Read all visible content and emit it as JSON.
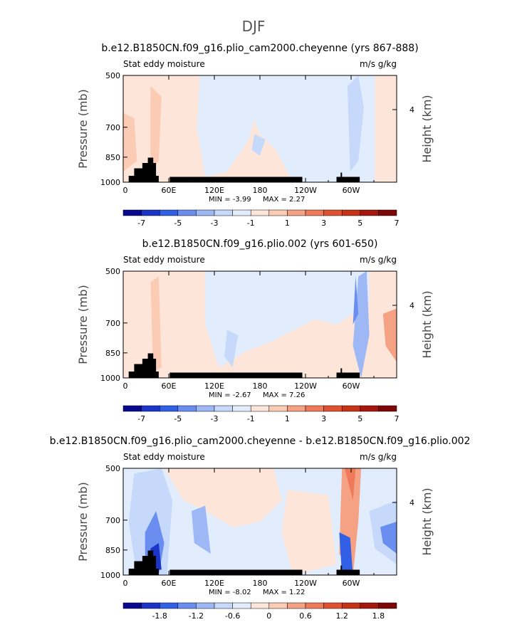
{
  "figure_title": "DJF",
  "chart_data": [
    {
      "type": "heatmap",
      "title": "b.e12.B1850CN.f09_g16.plio_cam2000.cheyenne (yrs 867-888)",
      "field_label": "Stat eddy moisture",
      "units_label": "m/s g/kg",
      "ylabel": "Pressure (mb)",
      "ylabel_right": "Height (km)",
      "right_ticks": [
        "4"
      ],
      "y_ticks": [
        "500",
        "700",
        "850",
        "1000"
      ],
      "x_ticks": [
        "0",
        "60E",
        "120E",
        "180",
        "120W",
        "60W"
      ],
      "min_text": "MIN =   -3.99",
      "max_text": "MAX =    2.27",
      "colorbar_labels": [
        "-7",
        "-5",
        "-3",
        "-1",
        "1",
        "3",
        "5",
        "7"
      ],
      "colorbar_colors": [
        "#08088f",
        "#1a35c8",
        "#3160e6",
        "#6a8ef0",
        "#9db8f5",
        "#c6d9fb",
        "#e1edfd",
        "#fde6d9",
        "#fbcbb3",
        "#f5a183",
        "#ee7a5a",
        "#e0522f",
        "#c63317",
        "#a5160d",
        "#7d0706"
      ]
    },
    {
      "type": "heatmap",
      "title": "b.e12.B1850CN.f09_g16.plio.002 (yrs 601-650)",
      "field_label": "Stat eddy moisture",
      "units_label": "m/s g/kg",
      "ylabel": "Pressure (mb)",
      "ylabel_right": "Height (km)",
      "right_ticks": [
        "4"
      ],
      "y_ticks": [
        "500",
        "700",
        "850",
        "1000"
      ],
      "x_ticks": [
        "0",
        "60E",
        "120E",
        "180",
        "120W",
        "60W"
      ],
      "min_text": "MIN =   -2.67",
      "max_text": "MAX =    7.26",
      "colorbar_labels": [
        "-7",
        "-5",
        "-3",
        "-1",
        "1",
        "3",
        "5",
        "7"
      ],
      "colorbar_colors": [
        "#08088f",
        "#1a35c8",
        "#3160e6",
        "#6a8ef0",
        "#9db8f5",
        "#c6d9fb",
        "#e1edfd",
        "#fde6d9",
        "#fbcbb3",
        "#f5a183",
        "#ee7a5a",
        "#e0522f",
        "#c63317",
        "#a5160d",
        "#7d0706"
      ]
    },
    {
      "type": "heatmap",
      "title": "b.e12.B1850CN.f09_g16.plio_cam2000.cheyenne - b.e12.B1850CN.f09_g16.plio.002",
      "field_label": "Stat eddy moisture",
      "units_label": "m/s g/kg",
      "ylabel": "Pressure (mb)",
      "ylabel_right": "Height (km)",
      "right_ticks": [
        "4"
      ],
      "y_ticks": [
        "500",
        "700",
        "850",
        "1000"
      ],
      "x_ticks": [
        "0",
        "60E",
        "120E",
        "180",
        "120W",
        "60W"
      ],
      "min_text": "MIN =   -8.02",
      "max_text": "MAX =    1.22",
      "colorbar_labels": [
        "-1.8",
        "-1.2",
        "-0.6",
        "0",
        "0.6",
        "1.2",
        "1.8"
      ],
      "colorbar_colors": [
        "#08088f",
        "#1a35c8",
        "#3160e6",
        "#6a8ef0",
        "#9db8f5",
        "#c6d9fb",
        "#e1edfd",
        "#fde6d9",
        "#fbcbb3",
        "#f5a183",
        "#ee7a5a",
        "#e0522f",
        "#c63317",
        "#a5160d",
        "#7d0706"
      ]
    }
  ]
}
